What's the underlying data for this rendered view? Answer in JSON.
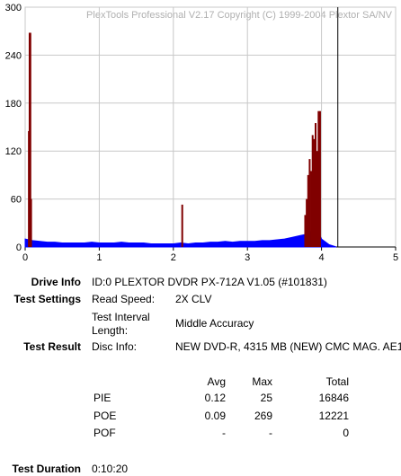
{
  "chart_data": {
    "type": "bar",
    "watermark": "PlexTools Professional V2.17 Copyright (C) 1999-2004 Plextor SA/NV",
    "xlim": [
      0,
      5
    ],
    "xticks": [
      0,
      1,
      2,
      3,
      4,
      5
    ],
    "ylim": [
      0,
      300
    ],
    "yticks": [
      0,
      60,
      120,
      180,
      240,
      300
    ],
    "grid": true,
    "marker_x": 4.22,
    "series": [
      {
        "color": "#0000ff",
        "style": "area",
        "x": [
          0,
          0.1,
          0.2,
          0.3,
          0.4,
          0.5,
          0.6,
          0.7,
          0.8,
          0.9,
          1.0,
          1.1,
          1.2,
          1.3,
          1.4,
          1.5,
          1.6,
          1.7,
          1.8,
          1.9,
          2.0,
          2.1,
          2.2,
          2.3,
          2.4,
          2.5,
          2.6,
          2.7,
          2.8,
          2.9,
          3.0,
          3.1,
          3.2,
          3.3,
          3.4,
          3.5,
          3.6,
          3.7,
          3.8,
          3.9,
          3.95,
          4.0,
          4.1,
          4.2
        ],
        "values": [
          10,
          8,
          7,
          6,
          6,
          5,
          5,
          5,
          5,
          6,
          5,
          5,
          5,
          6,
          5,
          5,
          5,
          4,
          4,
          4,
          4,
          5,
          4,
          5,
          5,
          6,
          6,
          7,
          6,
          7,
          7,
          7,
          8,
          8,
          9,
          10,
          12,
          14,
          16,
          22,
          20,
          10,
          3,
          0
        ]
      },
      {
        "color": "#800000",
        "style": "bars",
        "x": [
          0.05,
          0.06,
          0.07,
          0.08,
          2.12,
          3.78,
          3.8,
          3.82,
          3.84,
          3.86,
          3.88,
          3.9,
          3.92,
          3.94,
          3.96,
          3.98
        ],
        "values": [
          145,
          268,
          268,
          60,
          53,
          40,
          60,
          90,
          110,
          95,
          140,
          135,
          155,
          120,
          170,
          170
        ]
      }
    ]
  },
  "info": {
    "drive_label": "Drive Info",
    "drive_value": "ID:0 PLEXTOR DVDR PX-712A V1.05 (#101831)",
    "settings_label": "Test Settings",
    "speed_label": "Read Speed:",
    "speed_value": "2X CLV",
    "interval_label": "Test Interval Length:",
    "interval_value": "Middle Accuracy",
    "result_label": "Test Result",
    "disc_label": "Disc Info:",
    "disc_value": "NEW DVD-R, 4315 MB (NEW) CMC MAG. AE1",
    "stats_header": [
      "Avg",
      "Max",
      "Total"
    ],
    "stats_rows": [
      [
        "PIE",
        "0.12",
        "25",
        "16846"
      ],
      [
        "POE",
        "0.09",
        "269",
        "12221"
      ],
      [
        "POF",
        "-",
        "-",
        "0"
      ]
    ],
    "duration_label": "Test Duration",
    "duration_value": "0:10:20"
  }
}
